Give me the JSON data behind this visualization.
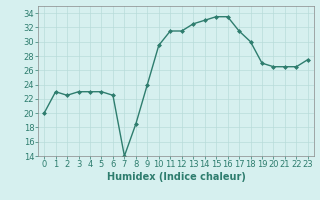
{
  "x": [
    0,
    1,
    2,
    3,
    4,
    5,
    6,
    7,
    8,
    9,
    10,
    11,
    12,
    13,
    14,
    15,
    16,
    17,
    18,
    19,
    20,
    21,
    22,
    23
  ],
  "y": [
    20,
    23,
    22.5,
    23,
    23,
    23,
    22.5,
    14,
    18.5,
    24,
    29.5,
    31.5,
    31.5,
    32.5,
    33,
    33.5,
    33.5,
    31.5,
    30,
    27,
    26.5,
    26.5,
    26.5,
    27.5
  ],
  "line_color": "#2e7d6e",
  "marker": "D",
  "marker_size": 2,
  "bg_color": "#d6f0ef",
  "grid_color": "#b8dcda",
  "xlabel": "Humidex (Indice chaleur)",
  "ylim": [
    14,
    35
  ],
  "yticks": [
    14,
    16,
    18,
    20,
    22,
    24,
    26,
    28,
    30,
    32,
    34
  ],
  "xlim": [
    -0.5,
    23.5
  ],
  "xticks": [
    0,
    1,
    2,
    3,
    4,
    5,
    6,
    7,
    8,
    9,
    10,
    11,
    12,
    13,
    14,
    15,
    16,
    17,
    18,
    19,
    20,
    21,
    22,
    23
  ],
  "tick_fontsize": 6,
  "xlabel_fontsize": 7
}
